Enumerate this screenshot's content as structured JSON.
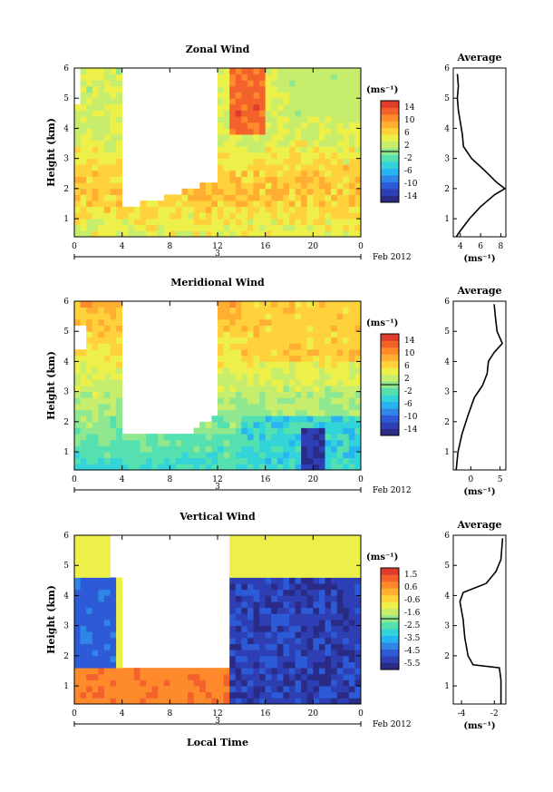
{
  "figure": {
    "date_label": "Feb 2012",
    "day_label": "3",
    "xlabel": "Local Time",
    "ylabel": "Height (km)",
    "profile_title": "Average",
    "units_label": "(ms⁻¹)",
    "profile_xlabel": "(ms⁻¹)"
  },
  "chart_data": [
    {
      "type": "heatmap",
      "title": "Zonal Wind",
      "xlabel": "Local Time",
      "ylabel": "Height (km)",
      "xlim": [
        0,
        24
      ],
      "ylim": [
        0.4,
        6
      ],
      "x_ticks": [
        "0",
        "4",
        "8",
        "12",
        "16",
        "20",
        "0"
      ],
      "y_ticks": [
        "1",
        "2",
        "3",
        "4",
        "5",
        "6"
      ],
      "colorbar": {
        "label": "(ms⁻¹)",
        "range": [
          -16,
          16
        ],
        "ticks": [
          "14",
          "10",
          "6",
          "2",
          "-2",
          "-6",
          "-10",
          "-14"
        ]
      },
      "profile": {
        "title": "Average",
        "xlabel": "(ms⁻¹)",
        "xlim": [
          3.3,
          8.5
        ],
        "x_ticks": [
          "4",
          "6",
          "8"
        ],
        "points": [
          [
            3.6,
            0.4
          ],
          [
            4.0,
            0.6
          ],
          [
            4.9,
            1.0
          ],
          [
            6.0,
            1.4
          ],
          [
            7.4,
            1.8
          ],
          [
            8.4,
            2.0
          ],
          [
            7.6,
            2.2
          ],
          [
            6.4,
            2.6
          ],
          [
            5.1,
            3.0
          ],
          [
            4.3,
            3.4
          ],
          [
            4.2,
            3.8
          ],
          [
            4.0,
            4.2
          ],
          [
            3.8,
            4.6
          ],
          [
            3.7,
            5.0
          ],
          [
            3.8,
            5.4
          ],
          [
            3.7,
            5.8
          ]
        ]
      }
    },
    {
      "type": "heatmap",
      "title": "Meridional Wind",
      "xlabel": "Local Time",
      "ylabel": "Height (km)",
      "xlim": [
        0,
        24
      ],
      "ylim": [
        0.4,
        6
      ],
      "x_ticks": [
        "0",
        "4",
        "8",
        "12",
        "16",
        "20",
        "0"
      ],
      "y_ticks": [
        "1",
        "2",
        "3",
        "4",
        "5",
        "6"
      ],
      "colorbar": {
        "label": "(ms⁻¹)",
        "range": [
          -16,
          16
        ],
        "ticks": [
          "14",
          "10",
          "6",
          "2",
          "-2",
          "-6",
          "-10",
          "-14"
        ]
      },
      "profile": {
        "title": "Average",
        "xlabel": "(ms⁻¹)",
        "xlim": [
          -3,
          6
        ],
        "x_ticks": [
          "0",
          "5"
        ],
        "points": [
          [
            -2.5,
            0.4
          ],
          [
            -2.2,
            1.0
          ],
          [
            -1.5,
            1.6
          ],
          [
            -0.5,
            2.2
          ],
          [
            0.6,
            2.8
          ],
          [
            2.0,
            3.2
          ],
          [
            2.8,
            3.6
          ],
          [
            3.0,
            4.0
          ],
          [
            4.0,
            4.3
          ],
          [
            5.4,
            4.6
          ],
          [
            4.5,
            5.0
          ],
          [
            4.2,
            5.5
          ],
          [
            4.0,
            5.9
          ]
        ]
      }
    },
    {
      "type": "heatmap",
      "title": "Vertical Wind",
      "xlabel": "Local Time",
      "ylabel": "Height (km)",
      "xlim": [
        0,
        24
      ],
      "ylim": [
        0.4,
        6
      ],
      "x_ticks": [
        "0",
        "4",
        "8",
        "12",
        "16",
        "20",
        "0"
      ],
      "y_ticks": [
        "1",
        "2",
        "3",
        "4",
        "5",
        "6"
      ],
      "colorbar": {
        "label": "(ms⁻¹)",
        "range": [
          -6,
          2
        ],
        "ticks": [
          "1.5",
          "0.6",
          "-0.6",
          "-1.6",
          "-2.5",
          "-3.5",
          "-4.5",
          "-5.5"
        ]
      },
      "profile": {
        "title": "Average",
        "xlabel": "(ms⁻¹)",
        "xlim": [
          -4.5,
          -1.3
        ],
        "x_ticks": [
          "-4",
          "-2"
        ],
        "points": [
          [
            -1.6,
            0.4
          ],
          [
            -1.6,
            1.2
          ],
          [
            -1.7,
            1.6
          ],
          [
            -3.3,
            1.7
          ],
          [
            -3.6,
            2.0
          ],
          [
            -3.8,
            2.6
          ],
          [
            -3.9,
            3.2
          ],
          [
            -4.1,
            3.8
          ],
          [
            -3.9,
            4.1
          ],
          [
            -2.5,
            4.4
          ],
          [
            -1.9,
            4.8
          ],
          [
            -1.6,
            5.2
          ],
          [
            -1.5,
            5.9
          ]
        ]
      }
    }
  ]
}
